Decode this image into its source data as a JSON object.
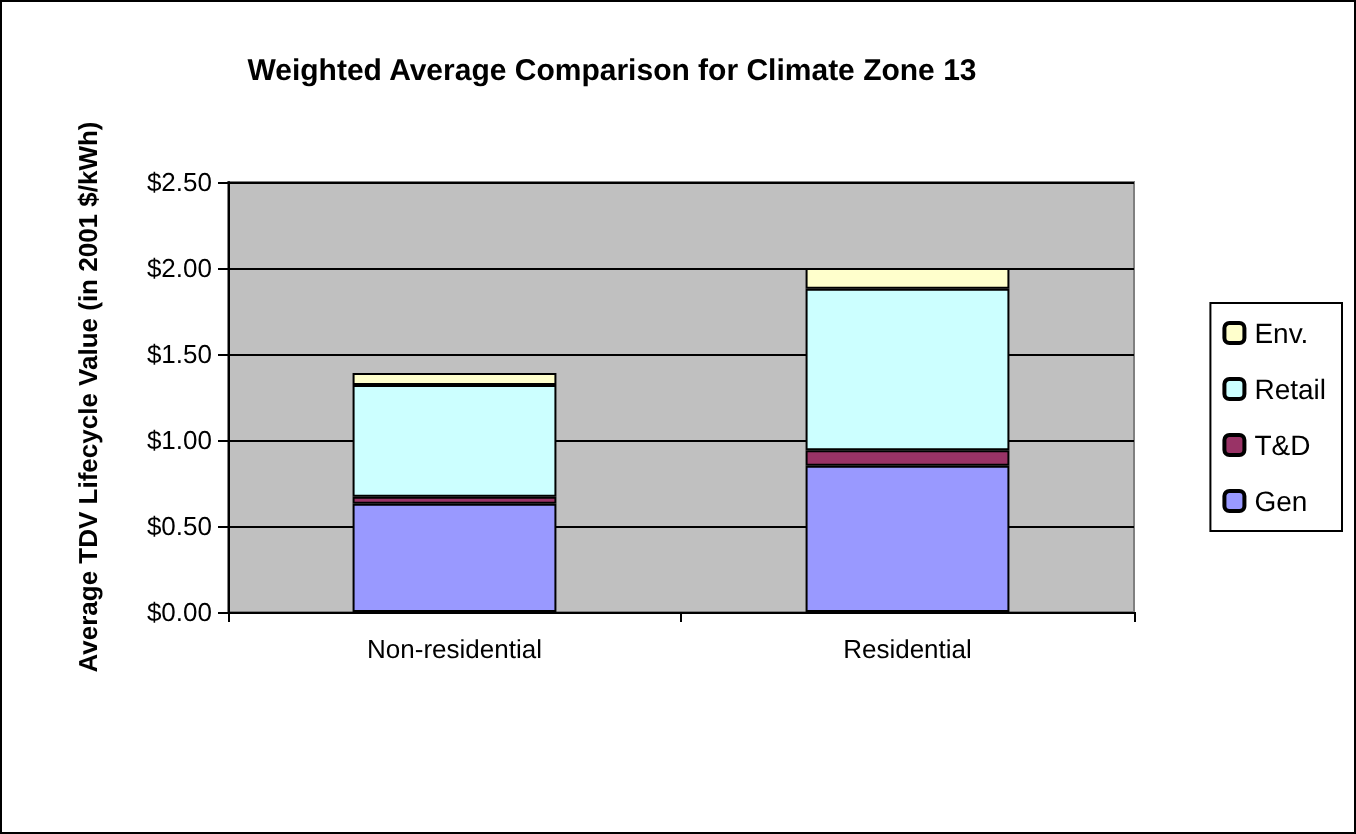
{
  "chart_data": {
    "type": "bar",
    "title": "Weighted Average Comparison for Climate Zone 13",
    "ylabel": "Average TDV Lifecycle Value (in 2001 $/kWh)",
    "categories": [
      "Non-residential",
      "Residential"
    ],
    "stacked": true,
    "series": [
      {
        "name": "Gen",
        "color": "#9999ff",
        "values": [
          0.63,
          0.85
        ]
      },
      {
        "name": "T&D",
        "color": "#993366",
        "values": [
          0.04,
          0.09
        ]
      },
      {
        "name": "Retail",
        "color": "#ccffff",
        "values": [
          0.65,
          0.94
        ]
      },
      {
        "name": "Env.",
        "color": "#ffffcc",
        "values": [
          0.07,
          0.12
        ]
      }
    ],
    "ylim": [
      0,
      2.5
    ],
    "yticks": [
      {
        "value": 0,
        "label": "$0.00"
      },
      {
        "value": 0.5,
        "label": "$0.50"
      },
      {
        "value": 1,
        "label": "$1.00"
      },
      {
        "value": 1.5,
        "label": "$1.50"
      },
      {
        "value": 2,
        "label": "$2.00"
      },
      {
        "value": 2.5,
        "label": "$2.50"
      }
    ],
    "grid": "y",
    "legend": "right"
  }
}
